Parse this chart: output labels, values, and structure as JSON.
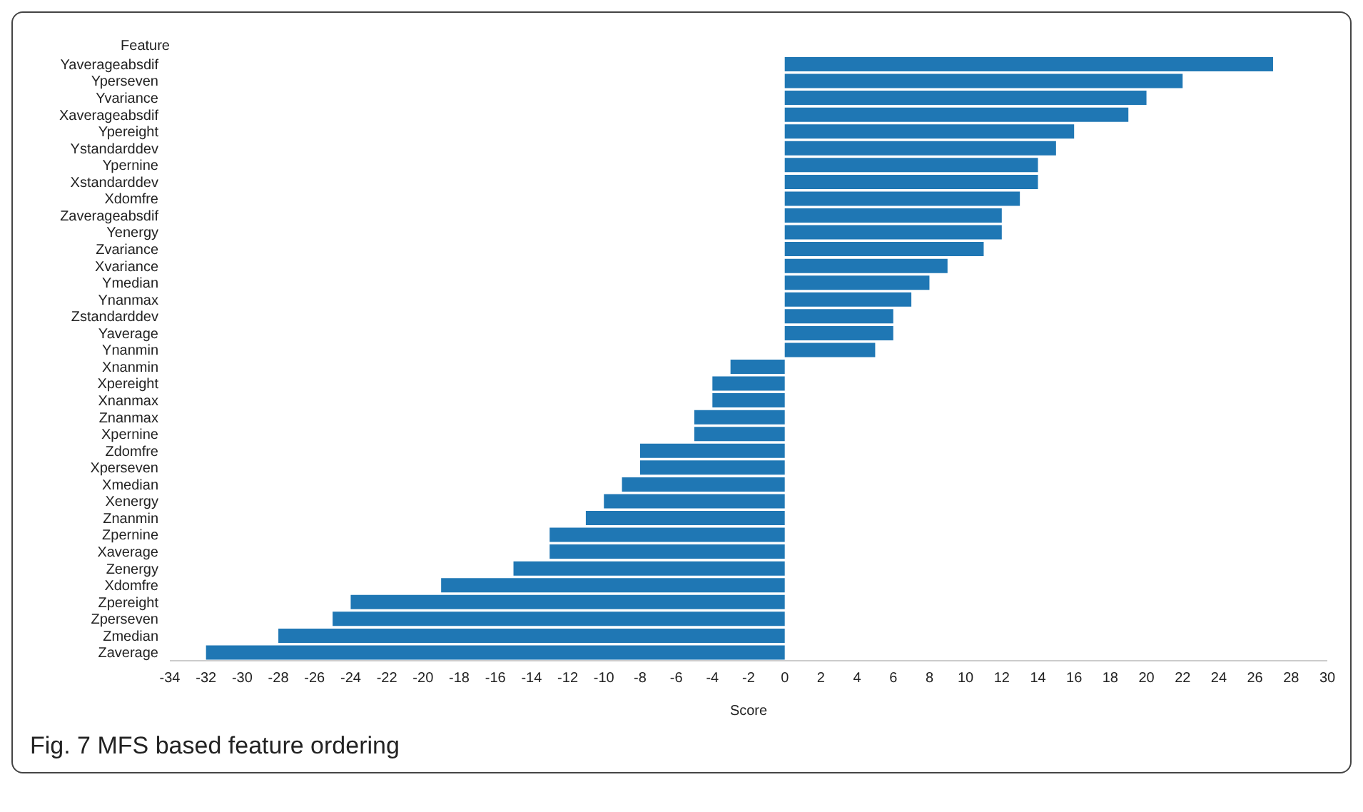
{
  "chart_data": {
    "type": "bar",
    "orientation": "horizontal",
    "ylabel": "Feature",
    "xlabel": "Score",
    "annotations": [
      "Fig. 7 MFS based feature ordering"
    ],
    "categories": [
      "Yaverageabsdif",
      "Yperseven",
      "Yvariance",
      "Xaverageabsdif",
      "Ypereight",
      "Ystandarddev",
      "Ypernine",
      "Xstandarddev",
      "Xdomfre",
      "Zaverageabsdif",
      "Yenergy",
      "Zvariance",
      "Xvariance",
      "Ymedian",
      "Ynanmax",
      "Zstandarddev",
      "Yaverage",
      "Ynanmin",
      "Xnanmin",
      "Xpereight",
      "Xnanmax",
      "Znanmax",
      "Xpernine",
      "Zdomfre",
      "Xperseven",
      "Xmedian",
      "Xenergy",
      "Znanmin",
      "Zpernine",
      "Xaverage",
      "Zenergy",
      "Xdomfre",
      "Zpereight",
      "Zperseven",
      "Zmedian",
      "Zaverage"
    ],
    "values": [
      27,
      22,
      20,
      19,
      16,
      15,
      14,
      14,
      13,
      12,
      12,
      11,
      9,
      8,
      7,
      6,
      6,
      5,
      -3,
      -4,
      -4,
      -5,
      -5,
      -8,
      -8,
      -9,
      -10,
      -11,
      -13,
      -13,
      -15,
      -19,
      -24,
      -25,
      -28,
      -32
    ],
    "color": "#1f77b4",
    "xlim": [
      -34,
      30
    ],
    "xticks": [
      -34,
      -32,
      -30,
      -28,
      -26,
      -24,
      -22,
      -20,
      -18,
      -16,
      -14,
      -12,
      -10,
      -8,
      -6,
      -4,
      -2,
      0,
      2,
      4,
      6,
      8,
      10,
      12,
      14,
      16,
      18,
      20,
      22,
      24,
      26,
      28,
      30
    ],
    "grid": false,
    "legend": false
  }
}
